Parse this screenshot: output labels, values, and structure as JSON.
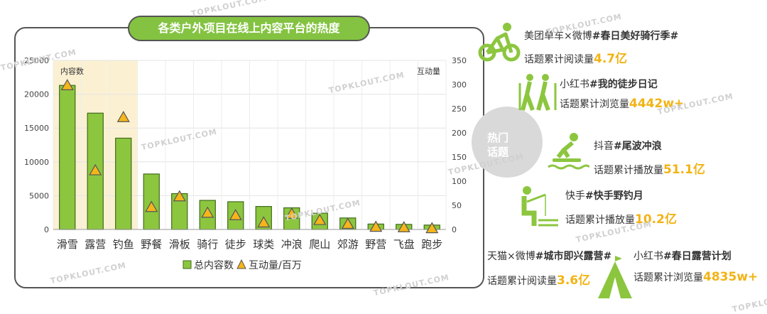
{
  "chart_data": {
    "type": "bar",
    "title": "各类户外项目在线上内容平台的热度",
    "categories": [
      "滑雪",
      "露营",
      "钓鱼",
      "野餐",
      "滑板",
      "骑行",
      "徒步",
      "球类",
      "冲浪",
      "爬山",
      "郊游",
      "野营",
      "飞盘",
      "跑步"
    ],
    "series": [
      {
        "name": "总内容数",
        "axis": "left",
        "values": [
          21300,
          17200,
          13500,
          8200,
          5300,
          4300,
          4100,
          3400,
          3200,
          2400,
          1700,
          800,
          750,
          650
        ],
        "color": "#8cc63f"
      },
      {
        "name": "互动量/百万",
        "axis": "right",
        "values": [
          298,
          122,
          232,
          46,
          68,
          34,
          29,
          14,
          32,
          19,
          11,
          5,
          4,
          2
        ],
        "color": "#f5b51b"
      }
    ],
    "left_axis": {
      "label": "内容数",
      "ticks": [
        "0",
        "5000",
        "10000",
        "15000",
        "20000",
        "25000"
      ],
      "ylim": [
        0,
        25000
      ]
    },
    "right_axis": {
      "label": "互动量",
      "ticks": [
        "0",
        "50",
        "100",
        "150",
        "200",
        "250",
        "300",
        "350"
      ],
      "ylim": [
        0,
        350
      ]
    },
    "highlight_categories": [
      "滑雪",
      "露营",
      "钓鱼"
    ],
    "legend": {
      "position": "bottom"
    }
  },
  "side_topics": {
    "hot_label_1": "热门",
    "hot_label_2": "话题",
    "t1": {
      "platform": "美团单车×微博",
      "topic": "#春日美好骑行季#",
      "metric": "话题累计阅读量",
      "value": "4.7亿",
      "icon": "cycling-icon"
    },
    "t2": {
      "platform": "小红书",
      "topic": "#我的徒步日记",
      "metric": "话题累计浏览量",
      "value": "4442w+",
      "icon": "hiking-icon"
    },
    "t3": {
      "platform": "抖音",
      "topic": "#尾波冲浪",
      "metric": "话题累计播放量",
      "value": "51.1亿",
      "icon": "surfing-icon"
    },
    "t4": {
      "platform": "快手",
      "topic": "#快手野钓月",
      "metric": "话题累计播放量",
      "value": "10.2亿",
      "icon": "fishing-icon"
    },
    "t5": {
      "platform": "天猫×微博",
      "topic": "#城市即兴露营#",
      "metric": "话题累计阅读量",
      "value": "3.6亿",
      "icon": "tent-icon"
    },
    "t6": {
      "platform": "小红书",
      "topic": "#春日露营计划",
      "metric": "话题累计浏览量",
      "value": "4835w+"
    }
  },
  "watermark": "TOPKLOUT.COM"
}
